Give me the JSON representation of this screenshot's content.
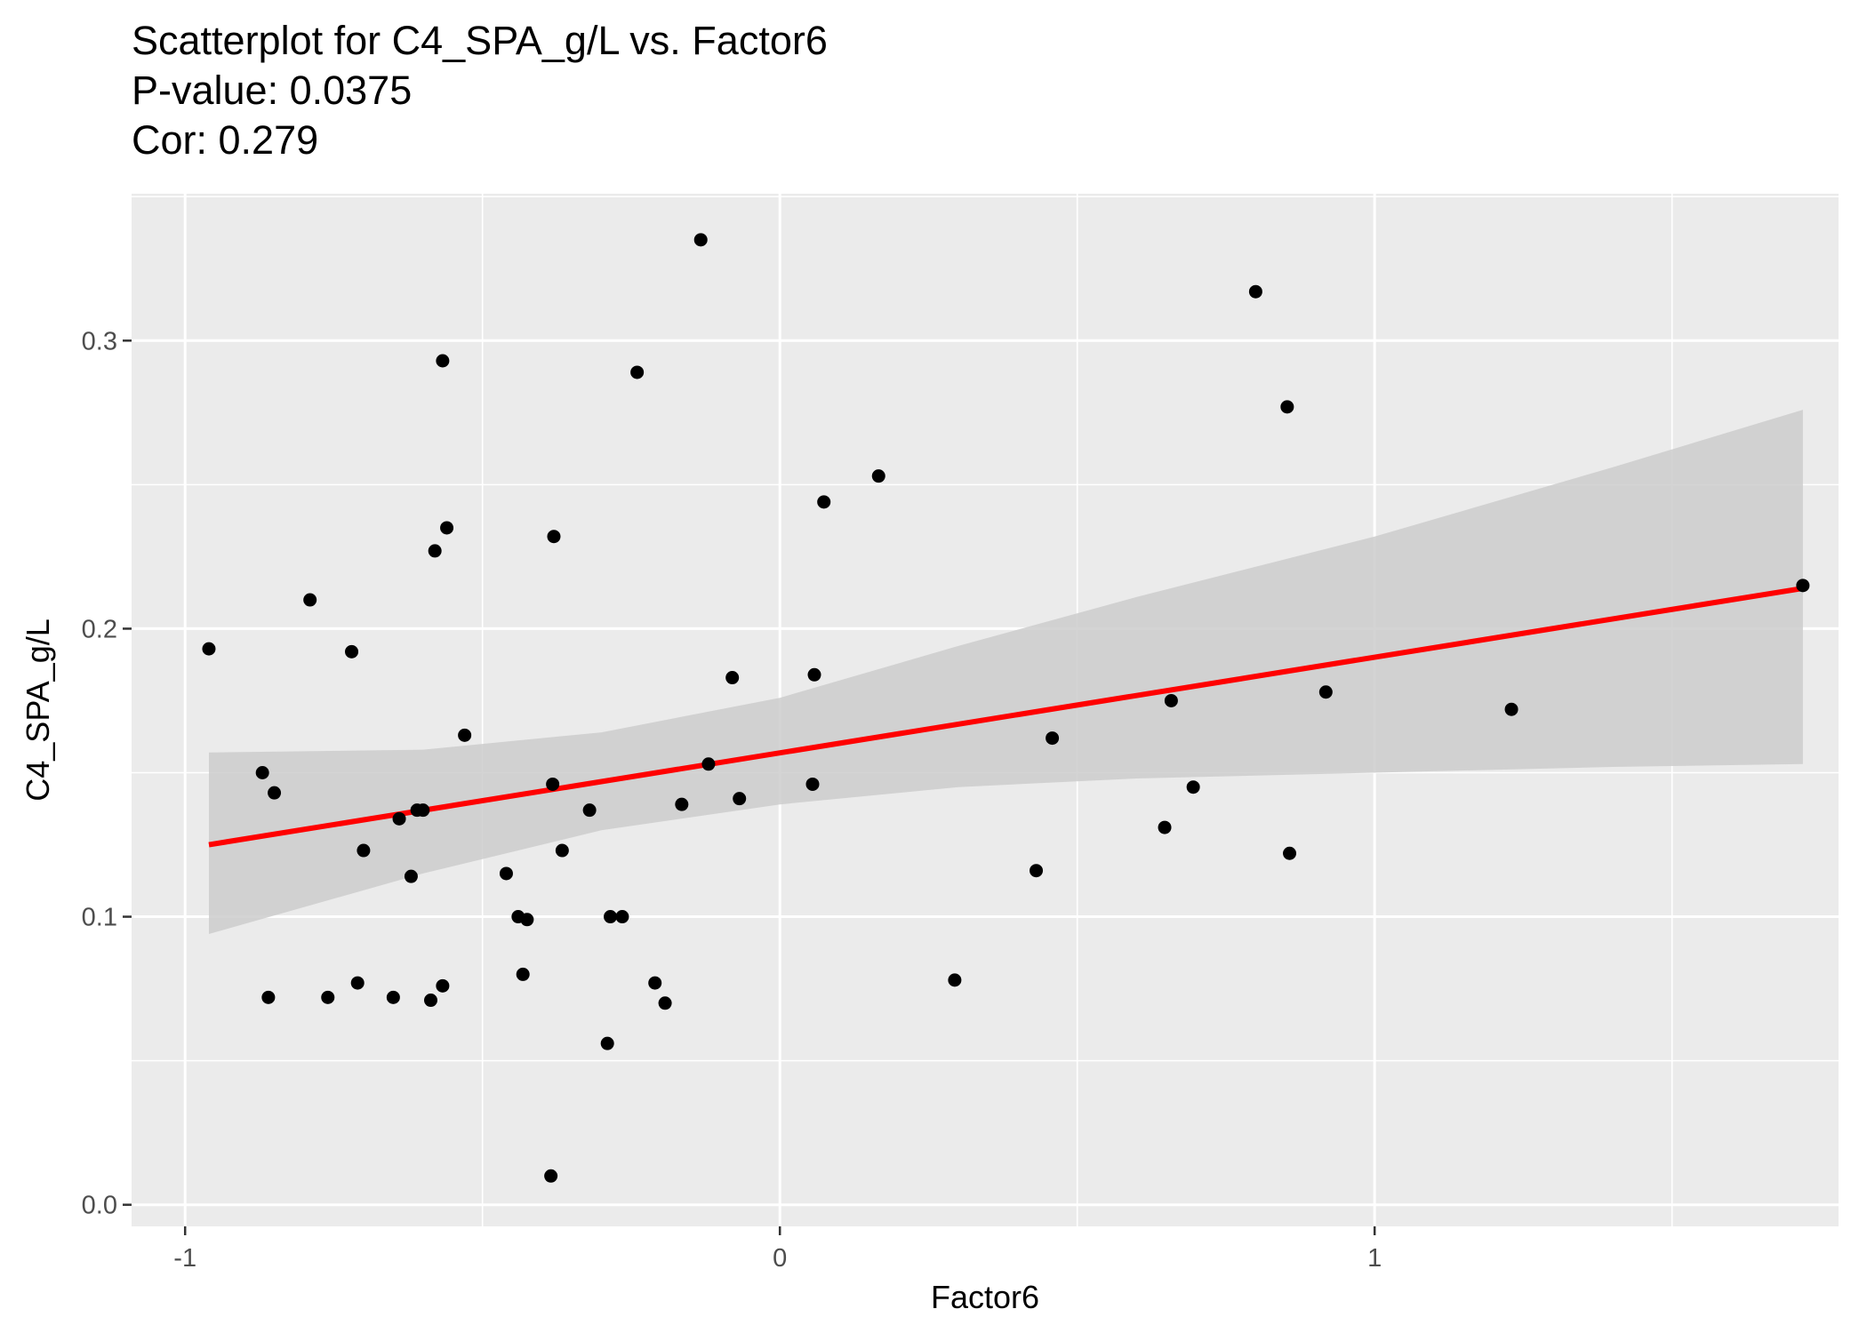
{
  "chart_data": {
    "type": "scatter",
    "title": "Scatterplot for C4_SPA_g/L vs. Factor6",
    "subtitle_lines": [
      "P-value: 0.0375",
      "Cor: 0.279"
    ],
    "xlabel": "Factor6",
    "ylabel": "C4_SPA_g/L",
    "xlim": [
      -1.09,
      1.78
    ],
    "ylim": [
      -0.0075,
      0.351
    ],
    "x_ticks": [
      -1,
      0,
      1
    ],
    "x_tick_labels": [
      "-1",
      "0",
      "1"
    ],
    "y_ticks": [
      0.0,
      0.1,
      0.2,
      0.3
    ],
    "y_tick_labels": [
      "0.0",
      "0.1",
      "0.2",
      "0.3"
    ],
    "grid": true,
    "point_color": "#000000",
    "points": [
      {
        "x": -0.96,
        "y": 0.193
      },
      {
        "x": -0.87,
        "y": 0.15
      },
      {
        "x": -0.86,
        "y": 0.072
      },
      {
        "x": -0.85,
        "y": 0.143
      },
      {
        "x": -0.79,
        "y": 0.21
      },
      {
        "x": -0.76,
        "y": 0.072
      },
      {
        "x": -0.72,
        "y": 0.192
      },
      {
        "x": -0.71,
        "y": 0.077
      },
      {
        "x": -0.7,
        "y": 0.123
      },
      {
        "x": -0.65,
        "y": 0.072
      },
      {
        "x": -0.64,
        "y": 0.134
      },
      {
        "x": -0.62,
        "y": 0.114
      },
      {
        "x": -0.61,
        "y": 0.137
      },
      {
        "x": -0.6,
        "y": 0.137
      },
      {
        "x": -0.587,
        "y": 0.071
      },
      {
        "x": -0.58,
        "y": 0.227
      },
      {
        "x": -0.567,
        "y": 0.293
      },
      {
        "x": -0.567,
        "y": 0.076
      },
      {
        "x": -0.56,
        "y": 0.235
      },
      {
        "x": -0.53,
        "y": 0.163
      },
      {
        "x": -0.46,
        "y": 0.115
      },
      {
        "x": -0.44,
        "y": 0.1
      },
      {
        "x": -0.432,
        "y": 0.08
      },
      {
        "x": -0.425,
        "y": 0.099
      },
      {
        "x": -0.385,
        "y": 0.01
      },
      {
        "x": -0.382,
        "y": 0.146
      },
      {
        "x": -0.38,
        "y": 0.232
      },
      {
        "x": -0.366,
        "y": 0.123
      },
      {
        "x": -0.32,
        "y": 0.137
      },
      {
        "x": -0.29,
        "y": 0.056
      },
      {
        "x": -0.285,
        "y": 0.1
      },
      {
        "x": -0.265,
        "y": 0.1
      },
      {
        "x": -0.24,
        "y": 0.289
      },
      {
        "x": -0.21,
        "y": 0.077
      },
      {
        "x": -0.193,
        "y": 0.07
      },
      {
        "x": -0.165,
        "y": 0.139
      },
      {
        "x": -0.133,
        "y": 0.335
      },
      {
        "x": -0.12,
        "y": 0.153
      },
      {
        "x": -0.08,
        "y": 0.183
      },
      {
        "x": -0.068,
        "y": 0.141
      },
      {
        "x": 0.055,
        "y": 0.146
      },
      {
        "x": 0.058,
        "y": 0.184
      },
      {
        "x": 0.074,
        "y": 0.244
      },
      {
        "x": 0.166,
        "y": 0.253
      },
      {
        "x": 0.294,
        "y": 0.078
      },
      {
        "x": 0.431,
        "y": 0.116
      },
      {
        "x": 0.458,
        "y": 0.162
      },
      {
        "x": 0.647,
        "y": 0.131
      },
      {
        "x": 0.658,
        "y": 0.175
      },
      {
        "x": 0.695,
        "y": 0.145
      },
      {
        "x": 0.8,
        "y": 0.317
      },
      {
        "x": 0.853,
        "y": 0.277
      },
      {
        "x": 0.857,
        "y": 0.122
      },
      {
        "x": 0.918,
        "y": 0.178
      },
      {
        "x": 1.23,
        "y": 0.172
      },
      {
        "x": 1.72,
        "y": 0.215
      }
    ],
    "trend_line": {
      "color": "#ff0000",
      "x": [
        -0.96,
        1.72
      ],
      "y": [
        0.125,
        0.214
      ]
    },
    "confidence_band": {
      "color": "#cccccc",
      "x": [
        -0.96,
        -0.6,
        -0.3,
        0.0,
        0.3,
        0.6,
        1.0,
        1.4,
        1.72
      ],
      "upper": [
        0.157,
        0.158,
        0.164,
        0.176,
        0.194,
        0.211,
        0.232,
        0.256,
        0.276
      ],
      "lower": [
        0.094,
        0.115,
        0.13,
        0.139,
        0.145,
        0.148,
        0.15,
        0.152,
        0.153
      ]
    }
  }
}
